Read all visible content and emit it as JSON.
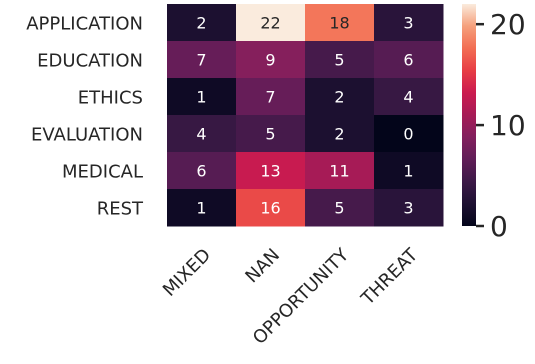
{
  "chart_data": {
    "type": "heatmap",
    "title": "",
    "xlabel": "",
    "ylabel": "",
    "rows": [
      "APPLICATION",
      "EDUCATION",
      "ETHICS",
      "EVALUATION",
      "MEDICAL",
      "REST"
    ],
    "columns": [
      "MIXED",
      "NAN",
      "OPPORTUNITY",
      "THREAT"
    ],
    "values": [
      [
        2,
        22,
        18,
        3
      ],
      [
        7,
        9,
        5,
        6
      ],
      [
        1,
        7,
        2,
        4
      ],
      [
        4,
        5,
        2,
        0
      ],
      [
        6,
        13,
        11,
        1
      ],
      [
        1,
        16,
        5,
        3
      ]
    ],
    "colorbar": {
      "min": 0,
      "max": 22,
      "ticks": [
        "0",
        "10",
        "20"
      ]
    },
    "colormap": "rocket",
    "annotations": true
  }
}
